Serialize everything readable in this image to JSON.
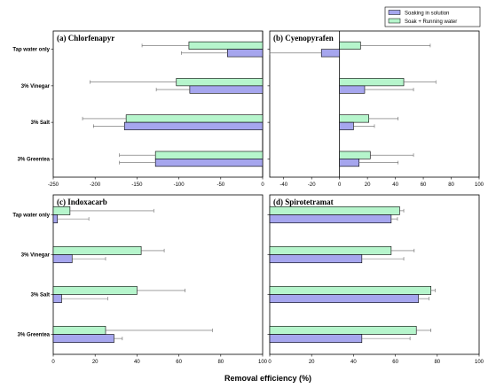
{
  "colors": {
    "soaking": "#a6a6ee",
    "running": "#b6f5cc",
    "edge": "#000000",
    "error": "#666666"
  },
  "legend": {
    "entries": [
      "Soaking in solution",
      "Soak + Running water"
    ]
  },
  "xlabel": "Removal efficiency (%)",
  "chart_data": [
    {
      "type": "bar",
      "orientation": "horizontal",
      "title": "(a) Chlorfenapyr",
      "categories": [
        "Tap water only",
        "3% Vinegar",
        "3% Salt",
        "3% Greentea"
      ],
      "xlim": [
        -250,
        0
      ],
      "xticks": [
        "-250",
        "-200",
        "-150",
        "-100",
        "-50",
        "0"
      ],
      "show_category_labels": true,
      "series": [
        {
          "name": "Soaking in solution",
          "values": [
            -42,
            -87,
            -165,
            -128
          ],
          "errors": [
            55,
            40,
            37,
            43
          ]
        },
        {
          "name": "Soak + Running water",
          "values": [
            -88,
            -103,
            -163,
            -128
          ],
          "errors": [
            56,
            103,
            52,
            43
          ]
        }
      ]
    },
    {
      "type": "bar",
      "orientation": "horizontal",
      "title": "(b) Cyenopyrafen",
      "categories": [
        "Tap water only",
        "3% Vinegar",
        "3% Salt",
        "3% Greentea"
      ],
      "xlim": [
        -50,
        100
      ],
      "xticks": [
        "-40",
        "-20",
        "0",
        "20",
        "40",
        "60",
        "80",
        "100"
      ],
      "show_category_labels": false,
      "series": [
        {
          "name": "Soaking in solution",
          "values": [
            -13,
            18,
            10,
            14
          ],
          "errors": [
            37,
            35,
            15,
            28
          ]
        },
        {
          "name": "Soak + Running water",
          "values": [
            15,
            46,
            21,
            22
          ],
          "errors": [
            50,
            23,
            21,
            31
          ]
        }
      ]
    },
    {
      "type": "bar",
      "orientation": "horizontal",
      "title": "(c) Indoxacarb",
      "categories": [
        "Tap water only",
        "3% Vinegar",
        "3% Salt",
        "3% Greentea"
      ],
      "xlim": [
        0,
        100
      ],
      "xticks": [
        "0",
        "20",
        "40",
        "60",
        "80",
        "100"
      ],
      "show_category_labels": true,
      "series": [
        {
          "name": "Soaking in solution",
          "values": [
            2,
            9,
            4,
            29
          ],
          "errors": [
            15,
            16,
            22,
            4
          ]
        },
        {
          "name": "Soak + Running water",
          "values": [
            8,
            42,
            40,
            25
          ],
          "errors": [
            40,
            11,
            23,
            51
          ]
        }
      ]
    },
    {
      "type": "bar",
      "orientation": "horizontal",
      "title": "(d) Spirotetramat",
      "categories": [
        "Tap water only",
        "3% Vinegar",
        "3% Salt",
        "3% Greentea"
      ],
      "xlim": [
        0,
        100
      ],
      "xticks": [
        "0",
        "20",
        "40",
        "60",
        "80",
        "100"
      ],
      "show_category_labels": false,
      "series": [
        {
          "name": "Soaking in solution",
          "values": [
            58,
            44,
            71,
            44
          ],
          "errors": [
            3,
            20,
            5,
            23
          ]
        },
        {
          "name": "Soak + Running water",
          "values": [
            62,
            58,
            77,
            70
          ],
          "errors": [
            2,
            11,
            2,
            7
          ]
        }
      ]
    }
  ]
}
